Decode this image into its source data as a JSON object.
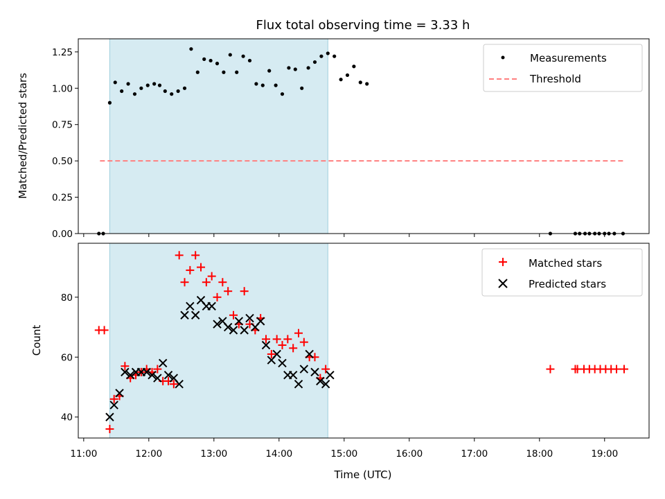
{
  "chart_data": [
    {
      "type": "scatter",
      "title": "Flux total observing time = 3.33 h",
      "xlabel": "",
      "ylabel": "Matched/Predicted stars",
      "xlim": [
        "10:55",
        "19:41"
      ],
      "ylim": [
        0,
        1.34
      ],
      "yticks": [
        "0.00",
        "0.25",
        "0.50",
        "0.75",
        "1.00",
        "1.25"
      ],
      "shaded_interval": [
        "11:24",
        "14:45"
      ],
      "shaded_color": "#add8e6",
      "grid": false,
      "legend_position": "top-right",
      "series": [
        {
          "name": "Measurements",
          "style": "dot",
          "color": "#000000",
          "points": [
            [
              "11:14",
              0.0
            ],
            [
              "11:18",
              0.0
            ],
            [
              "11:24",
              0.9
            ],
            [
              "11:29",
              1.04
            ],
            [
              "11:35",
              0.98
            ],
            [
              "11:41",
              1.03
            ],
            [
              "11:47",
              0.96
            ],
            [
              "11:53",
              1.0
            ],
            [
              "11:59",
              1.02
            ],
            [
              "12:05",
              1.03
            ],
            [
              "12:10",
              1.02
            ],
            [
              "12:15",
              0.98
            ],
            [
              "12:21",
              0.96
            ],
            [
              "12:27",
              0.98
            ],
            [
              "12:33",
              1.0
            ],
            [
              "12:39",
              1.27
            ],
            [
              "12:45",
              1.11
            ],
            [
              "12:51",
              1.2
            ],
            [
              "12:57",
              1.19
            ],
            [
              "13:03",
              1.17
            ],
            [
              "13:09",
              1.11
            ],
            [
              "13:15",
              1.23
            ],
            [
              "13:21",
              1.11
            ],
            [
              "13:27",
              1.22
            ],
            [
              "13:33",
              1.19
            ],
            [
              "13:39",
              1.03
            ],
            [
              "13:45",
              1.02
            ],
            [
              "13:51",
              1.12
            ],
            [
              "13:57",
              1.02
            ],
            [
              "14:03",
              0.96
            ],
            [
              "14:09",
              1.14
            ],
            [
              "14:15",
              1.13
            ],
            [
              "14:21",
              1.0
            ],
            [
              "14:27",
              1.14
            ],
            [
              "14:33",
              1.18
            ],
            [
              "14:39",
              1.22
            ],
            [
              "14:45",
              1.24
            ],
            [
              "14:51",
              1.22
            ],
            [
              "14:57",
              1.06
            ],
            [
              "15:03",
              1.09
            ],
            [
              "15:09",
              1.15
            ],
            [
              "15:15",
              1.04
            ],
            [
              "15:21",
              1.03
            ],
            [
              "18:10",
              0.0
            ],
            [
              "18:33",
              0.0
            ],
            [
              "18:37",
              0.0
            ],
            [
              "18:42",
              0.0
            ],
            [
              "18:46",
              0.0
            ],
            [
              "18:51",
              0.0
            ],
            [
              "18:55",
              0.0
            ],
            [
              "19:00",
              0.0
            ],
            [
              "19:04",
              0.0
            ],
            [
              "19:09",
              0.0
            ],
            [
              "19:17",
              0.0
            ]
          ]
        },
        {
          "name": "Threshold",
          "style": "dashed-line",
          "color": "#ff7f7f",
          "points": [
            [
              "11:15",
              0.5
            ],
            [
              "19:17",
              0.5
            ]
          ]
        }
      ]
    },
    {
      "type": "scatter",
      "title": "",
      "xlabel": "Time (UTC)",
      "ylabel": "Count",
      "xlim": [
        "10:55",
        "19:41"
      ],
      "ylim": [
        33,
        98
      ],
      "xticks": [
        "11:00",
        "12:00",
        "13:00",
        "14:00",
        "15:00",
        "16:00",
        "17:00",
        "18:00",
        "19:00"
      ],
      "yticks": [
        "40",
        "60",
        "80"
      ],
      "shaded_interval": [
        "11:24",
        "14:45"
      ],
      "shaded_color": "#add8e6",
      "grid": false,
      "legend_position": "top-right",
      "series": [
        {
          "name": "Matched stars",
          "style": "plus",
          "color": "#ff0000",
          "points": [
            [
              "11:14",
              69
            ],
            [
              "11:19",
              69
            ],
            [
              "11:24",
              36
            ],
            [
              "11:28",
              46
            ],
            [
              "11:33",
              47
            ],
            [
              "11:38",
              57
            ],
            [
              "11:43",
              53
            ],
            [
              "11:48",
              54
            ],
            [
              "11:53",
              55
            ],
            [
              "11:58",
              56
            ],
            [
              "12:03",
              55
            ],
            [
              "12:08",
              56
            ],
            [
              "12:13",
              52
            ],
            [
              "12:18",
              52
            ],
            [
              "12:23",
              51
            ],
            [
              "12:28",
              94
            ],
            [
              "12:33",
              85
            ],
            [
              "12:38",
              89
            ],
            [
              "12:43",
              94
            ],
            [
              "12:48",
              90
            ],
            [
              "12:53",
              85
            ],
            [
              "12:58",
              87
            ],
            [
              "13:03",
              80
            ],
            [
              "13:08",
              85
            ],
            [
              "13:13",
              82
            ],
            [
              "13:18",
              74
            ],
            [
              "13:23",
              71
            ],
            [
              "13:28",
              82
            ],
            [
              "13:33",
              71
            ],
            [
              "13:38",
              69
            ],
            [
              "13:43",
              73
            ],
            [
              "13:48",
              66
            ],
            [
              "13:53",
              61
            ],
            [
              "13:58",
              66
            ],
            [
              "14:03",
              64
            ],
            [
              "14:08",
              66
            ],
            [
              "14:13",
              63
            ],
            [
              "14:18",
              68
            ],
            [
              "14:23",
              65
            ],
            [
              "14:28",
              60
            ],
            [
              "14:33",
              60
            ],
            [
              "14:38",
              53
            ],
            [
              "14:43",
              56
            ],
            [
              "18:10",
              56
            ],
            [
              "18:33",
              56
            ],
            [
              "18:35",
              56
            ],
            [
              "18:41",
              56
            ],
            [
              "18:46",
              56
            ],
            [
              "18:51",
              56
            ],
            [
              "18:56",
              56
            ],
            [
              "19:01",
              56
            ],
            [
              "19:06",
              56
            ],
            [
              "19:11",
              56
            ],
            [
              "19:18",
              56
            ]
          ]
        },
        {
          "name": "Predicted stars",
          "style": "x",
          "color": "#000000",
          "points": [
            [
              "11:24",
              40
            ],
            [
              "11:28",
              44
            ],
            [
              "11:33",
              48
            ],
            [
              "11:38",
              55
            ],
            [
              "11:43",
              54
            ],
            [
              "11:48",
              55
            ],
            [
              "11:53",
              55
            ],
            [
              "11:58",
              55
            ],
            [
              "12:03",
              54
            ],
            [
              "12:08",
              53
            ],
            [
              "12:13",
              58
            ],
            [
              "12:18",
              54
            ],
            [
              "12:23",
              53
            ],
            [
              "12:28",
              51
            ],
            [
              "12:33",
              74
            ],
            [
              "12:38",
              77
            ],
            [
              "12:43",
              74
            ],
            [
              "12:48",
              79
            ],
            [
              "12:53",
              77
            ],
            [
              "12:58",
              77
            ],
            [
              "13:03",
              71
            ],
            [
              "13:08",
              72
            ],
            [
              "13:13",
              70
            ],
            [
              "13:18",
              69
            ],
            [
              "13:23",
              72
            ],
            [
              "13:28",
              69
            ],
            [
              "13:33",
              73
            ],
            [
              "13:38",
              70
            ],
            [
              "13:43",
              72
            ],
            [
              "13:48",
              64
            ],
            [
              "13:53",
              59
            ],
            [
              "13:58",
              61
            ],
            [
              "14:03",
              58
            ],
            [
              "14:08",
              54
            ],
            [
              "14:13",
              54
            ],
            [
              "14:18",
              51
            ],
            [
              "14:23",
              56
            ],
            [
              "14:28",
              61
            ],
            [
              "14:33",
              55
            ],
            [
              "14:38",
              52
            ],
            [
              "14:43",
              51
            ],
            [
              "14:47",
              54
            ]
          ]
        }
      ]
    }
  ]
}
